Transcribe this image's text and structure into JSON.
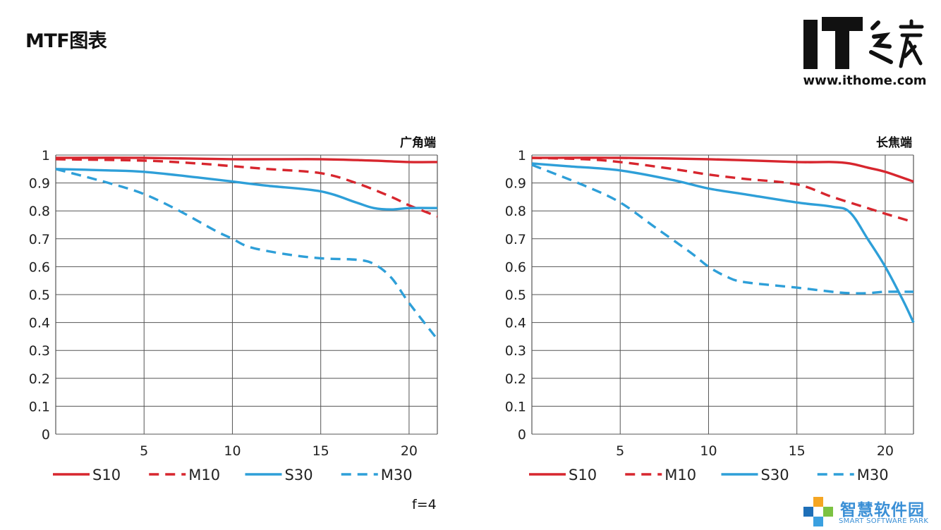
{
  "page": {
    "title": "MTF图表"
  },
  "ithome": {
    "logo_text": "IT之家",
    "url": "www.ithome.com"
  },
  "footnote": "f=4",
  "watermark": {
    "name": "智慧软件园",
    "sub": "SMART SOFTWARE PARK"
  },
  "colors": {
    "red": "#d7262e",
    "blue": "#2e9fd8",
    "grid": "#555555",
    "axis_text": "#222222"
  },
  "chart_data": [
    {
      "type": "line",
      "title": "广角端",
      "xlabel": "",
      "ylabel": "",
      "xlim": [
        0,
        21.6
      ],
      "ylim": [
        0,
        1
      ],
      "x_ticks": [
        5,
        10,
        15,
        20
      ],
      "y_ticks": [
        "0",
        "0.1",
        "0.2",
        "0.3",
        "0.4",
        "0.5",
        "0.6",
        "0.7",
        "0.8",
        "0.9",
        "1"
      ],
      "grid": true,
      "legend_position": "bottom",
      "series": [
        {
          "name": "S10",
          "color": "#d7262e",
          "dash": false,
          "x": [
            0,
            5,
            10,
            15,
            18,
            20,
            21.6
          ],
          "y": [
            0.99,
            0.99,
            0.985,
            0.985,
            0.98,
            0.975,
            0.975
          ]
        },
        {
          "name": "M10",
          "color": "#d7262e",
          "dash": true,
          "x": [
            0,
            5,
            8,
            10,
            12,
            15,
            17,
            19,
            20,
            21.6
          ],
          "y": [
            0.985,
            0.98,
            0.97,
            0.96,
            0.95,
            0.935,
            0.9,
            0.85,
            0.82,
            0.78
          ]
        },
        {
          "name": "S30",
          "color": "#2e9fd8",
          "dash": false,
          "x": [
            0,
            3,
            5,
            8,
            10,
            12,
            15,
            17,
            18,
            19,
            20,
            21.6
          ],
          "y": [
            0.95,
            0.945,
            0.94,
            0.92,
            0.905,
            0.89,
            0.87,
            0.83,
            0.81,
            0.805,
            0.81,
            0.81
          ]
        },
        {
          "name": "M30",
          "color": "#2e9fd8",
          "dash": true,
          "x": [
            0,
            3,
            5,
            7,
            9,
            10,
            11,
            13,
            15,
            17,
            18,
            19,
            20,
            21.6
          ],
          "y": [
            0.95,
            0.9,
            0.86,
            0.8,
            0.73,
            0.7,
            0.67,
            0.645,
            0.63,
            0.625,
            0.61,
            0.56,
            0.47,
            0.34
          ]
        }
      ]
    },
    {
      "type": "line",
      "title": "长焦端",
      "xlabel": "",
      "ylabel": "",
      "xlim": [
        0,
        21.6
      ],
      "ylim": [
        0,
        1
      ],
      "x_ticks": [
        5,
        10,
        15,
        20
      ],
      "y_ticks": [
        "0",
        "0.1",
        "0.2",
        "0.3",
        "0.4",
        "0.5",
        "0.6",
        "0.7",
        "0.8",
        "0.9",
        "1"
      ],
      "grid": true,
      "legend_position": "bottom",
      "series": [
        {
          "name": "S10",
          "color": "#d7262e",
          "dash": false,
          "x": [
            0,
            5,
            10,
            15,
            17,
            18,
            19,
            20,
            21.6
          ],
          "y": [
            0.99,
            0.99,
            0.985,
            0.975,
            0.975,
            0.97,
            0.955,
            0.94,
            0.905
          ]
        },
        {
          "name": "M10",
          "color": "#d7262e",
          "dash": true,
          "x": [
            0,
            3,
            5,
            8,
            10,
            12,
            15,
            17,
            19,
            20,
            21.6
          ],
          "y": [
            0.99,
            0.985,
            0.975,
            0.95,
            0.93,
            0.915,
            0.895,
            0.85,
            0.81,
            0.79,
            0.76
          ]
        },
        {
          "name": "S30",
          "color": "#2e9fd8",
          "dash": false,
          "x": [
            0,
            2,
            5,
            8,
            10,
            12,
            15,
            17,
            18,
            19,
            20,
            21,
            21.6
          ],
          "y": [
            0.97,
            0.96,
            0.945,
            0.91,
            0.88,
            0.86,
            0.83,
            0.815,
            0.795,
            0.7,
            0.6,
            0.48,
            0.4
          ]
        },
        {
          "name": "M30",
          "color": "#2e9fd8",
          "dash": true,
          "x": [
            0,
            3,
            5,
            7,
            9,
            10,
            11,
            12,
            15,
            17,
            18,
            19,
            20,
            21.6
          ],
          "y": [
            0.965,
            0.89,
            0.83,
            0.74,
            0.65,
            0.6,
            0.565,
            0.545,
            0.525,
            0.51,
            0.505,
            0.505,
            0.51,
            0.51
          ]
        }
      ]
    }
  ]
}
